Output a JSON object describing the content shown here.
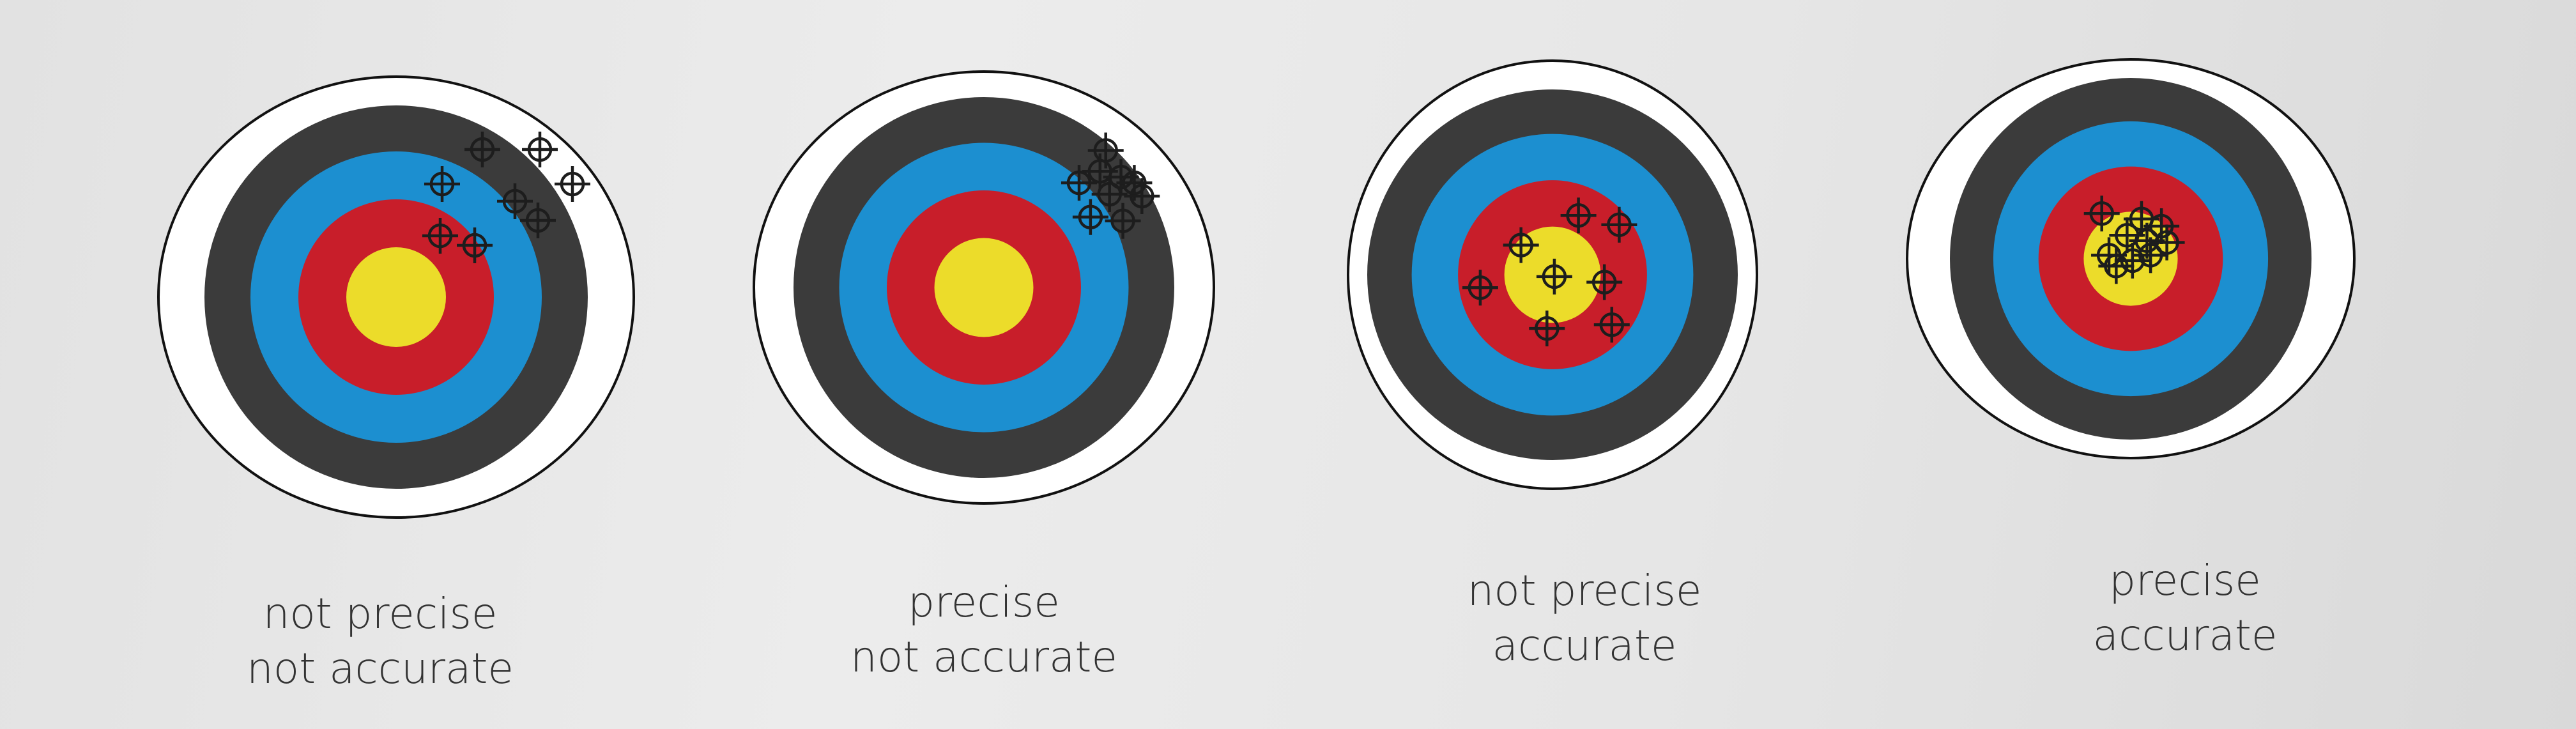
{
  "colors": {
    "outer_ring": "#ffffff",
    "black_ring": "#3b3b3b",
    "blue_ring": "#1c8fd0",
    "red_ring": "#c81e2a",
    "gold_center": "#ecdc2a",
    "marker": "#1d1d1d"
  },
  "marker_icon": "crosshair-icon",
  "targets": [
    {
      "caption": [
        "not precise",
        "not accurate"
      ],
      "hits": [
        [
          0.45,
          -0.77
        ],
        [
          0.75,
          -0.77
        ],
        [
          0.92,
          -0.59
        ],
        [
          0.62,
          -0.5
        ],
        [
          0.74,
          -0.4
        ],
        [
          0.24,
          -0.59
        ],
        [
          0.23,
          -0.32
        ],
        [
          0.41,
          -0.27
        ]
      ]
    },
    {
      "caption": [
        "precise",
        "not accurate"
      ],
      "hits": [
        [
          0.64,
          -0.72
        ],
        [
          0.61,
          -0.61
        ],
        [
          0.72,
          -0.58
        ],
        [
          0.5,
          -0.55
        ],
        [
          0.66,
          -0.49
        ],
        [
          0.79,
          -0.55
        ],
        [
          0.83,
          -0.48
        ],
        [
          0.56,
          -0.37
        ],
        [
          0.73,
          -0.35
        ]
      ]
    },
    {
      "caption": [
        "not precise",
        "accurate"
      ],
      "hits": [
        [
          0.14,
          -0.32
        ],
        [
          -0.17,
          -0.16
        ],
        [
          0.36,
          -0.27
        ],
        [
          0.01,
          0.01
        ],
        [
          0.28,
          0.04
        ],
        [
          -0.39,
          0.07
        ],
        [
          0.32,
          0.27
        ],
        [
          -0.03,
          0.29
        ]
      ]
    },
    {
      "caption": [
        "precise",
        "accurate"
      ],
      "hits": [
        [
          -0.16,
          -0.25
        ],
        [
          0.06,
          -0.22
        ],
        [
          0.17,
          -0.18
        ],
        [
          -0.02,
          -0.13
        ],
        [
          0.09,
          -0.1
        ],
        [
          0.2,
          -0.09
        ],
        [
          -0.12,
          -0.02
        ],
        [
          0.11,
          -0.02
        ],
        [
          0.01,
          0.01
        ],
        [
          -0.08,
          0.04
        ]
      ]
    }
  ]
}
